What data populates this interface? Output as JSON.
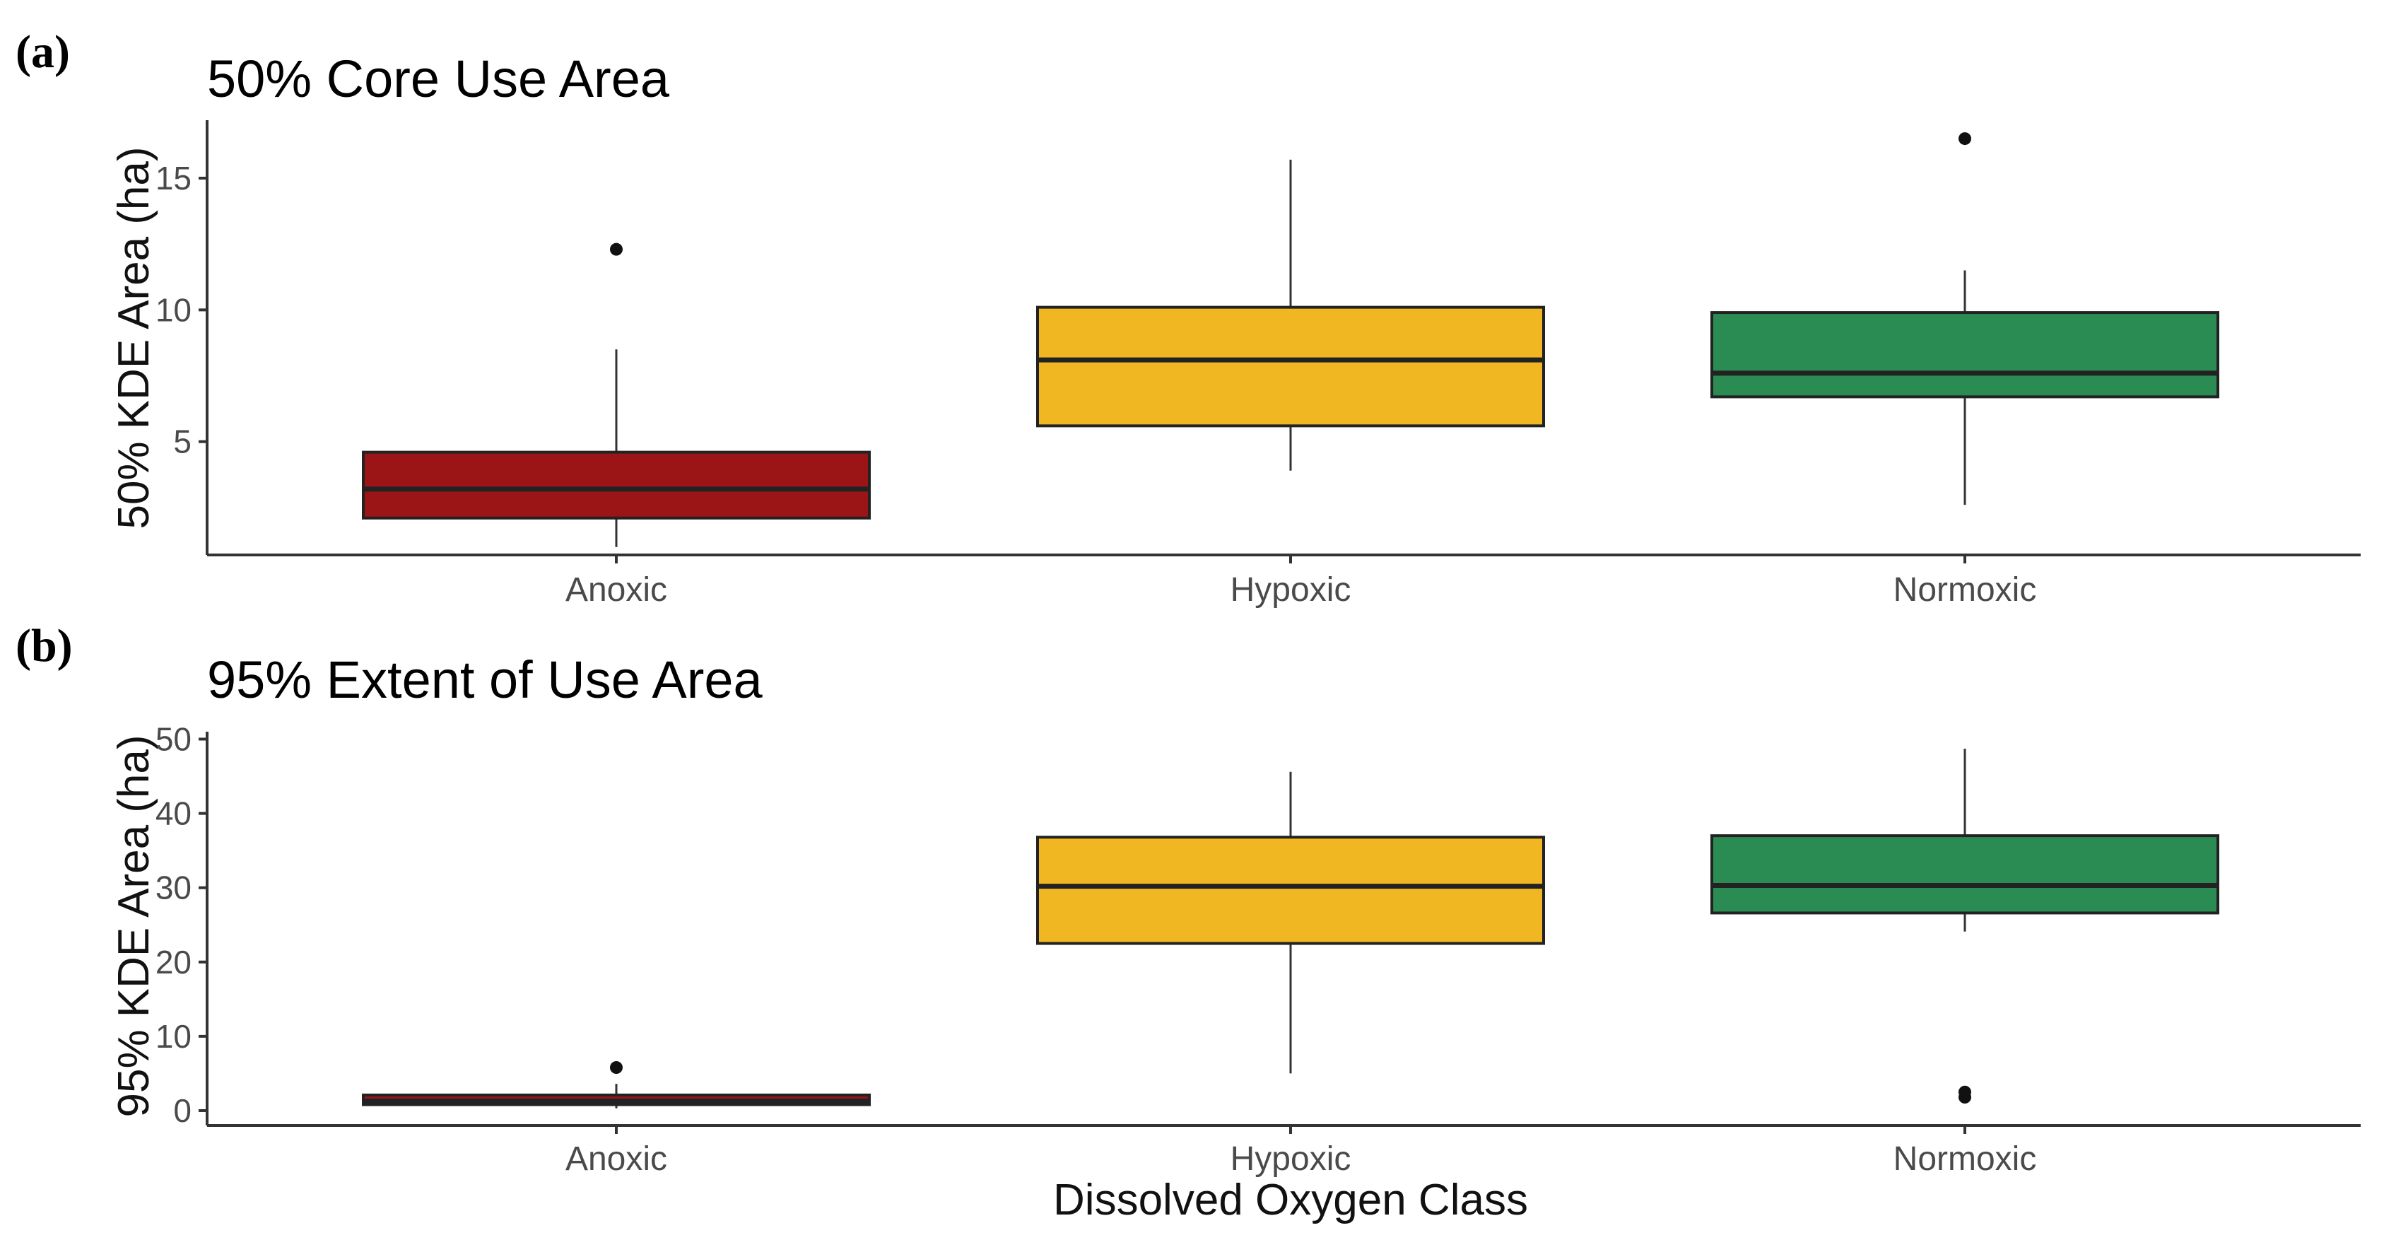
{
  "panels": [
    {
      "label": "(a)",
      "title": "50% Core Use Area"
    },
    {
      "label": "(b)",
      "title": "95% Extent of Use Area"
    }
  ],
  "colors": {
    "Anoxic": "#9b1516",
    "Hypoxic": "#f0b722",
    "Normoxic": "#2a8c53"
  },
  "chart_data": [
    {
      "type": "box",
      "title": "50% Core Use Area",
      "xlabel": "",
      "ylabel": "50% KDE Area (ha)",
      "categories": [
        "Anoxic",
        "Hypoxic",
        "Normoxic"
      ],
      "yticks": [
        5,
        10,
        15
      ],
      "ylim": [
        0.7,
        17.2
      ],
      "grid": false,
      "boxes": [
        {
          "category": "Anoxic",
          "whisker_low": 1.0,
          "q1": 2.1,
          "median": 3.2,
          "q3": 4.6,
          "whisker_high": 8.5,
          "outliers": [
            12.3
          ]
        },
        {
          "category": "Hypoxic",
          "whisker_low": 3.9,
          "q1": 5.6,
          "median": 8.1,
          "q3": 10.1,
          "whisker_high": 15.7,
          "outliers": []
        },
        {
          "category": "Normoxic",
          "whisker_low": 2.6,
          "q1": 6.7,
          "median": 7.6,
          "q3": 9.9,
          "whisker_high": 11.5,
          "outliers": [
            16.5
          ]
        }
      ]
    },
    {
      "type": "box",
      "title": "95% Extent of Use Area",
      "xlabel": "Dissolved Oxygen Class",
      "ylabel": "95% KDE Area (ha)",
      "categories": [
        "Anoxic",
        "Hypoxic",
        "Normoxic"
      ],
      "yticks": [
        0,
        10,
        20,
        30,
        40,
        50
      ],
      "ylim": [
        -2,
        51
      ],
      "grid": false,
      "boxes": [
        {
          "category": "Anoxic",
          "whisker_low": 0.3,
          "q1": 0.8,
          "median": 1.3,
          "q3": 2.1,
          "whisker_high": 3.6,
          "outliers": [
            5.8
          ]
        },
        {
          "category": "Hypoxic",
          "whisker_low": 5.0,
          "q1": 22.5,
          "median": 30.2,
          "q3": 36.8,
          "whisker_high": 45.6,
          "outliers": []
        },
        {
          "category": "Normoxic",
          "whisker_low": 24.1,
          "q1": 26.6,
          "median": 30.3,
          "q3": 37.0,
          "whisker_high": 48.7,
          "outliers": [
            1.8,
            2.5
          ]
        }
      ]
    }
  ]
}
